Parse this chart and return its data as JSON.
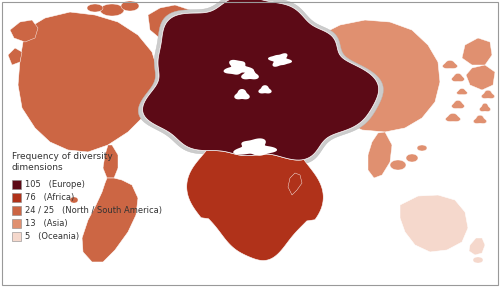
{
  "legend_title": "Frequency of diversity\ndimensions",
  "legend_items": [
    {
      "value": "105",
      "label": "(Europe)",
      "color": "#5c0a16"
    },
    {
      "value": "76",
      "label": "(Africa)",
      "color": "#b0321a"
    },
    {
      "value": "24 / 25",
      "label": "(North / South America)",
      "color": "#cc6644"
    },
    {
      "value": "13",
      "label": "(Asia)",
      "color": "#e09070"
    },
    {
      "value": "5",
      "label": "(Oceania)",
      "color": "#f5d8cc"
    }
  ],
  "bg_color": "#ffffff",
  "border_color": "#999999",
  "font_size": 6.5,
  "figsize": [
    5.0,
    2.87
  ],
  "dpi": 100
}
